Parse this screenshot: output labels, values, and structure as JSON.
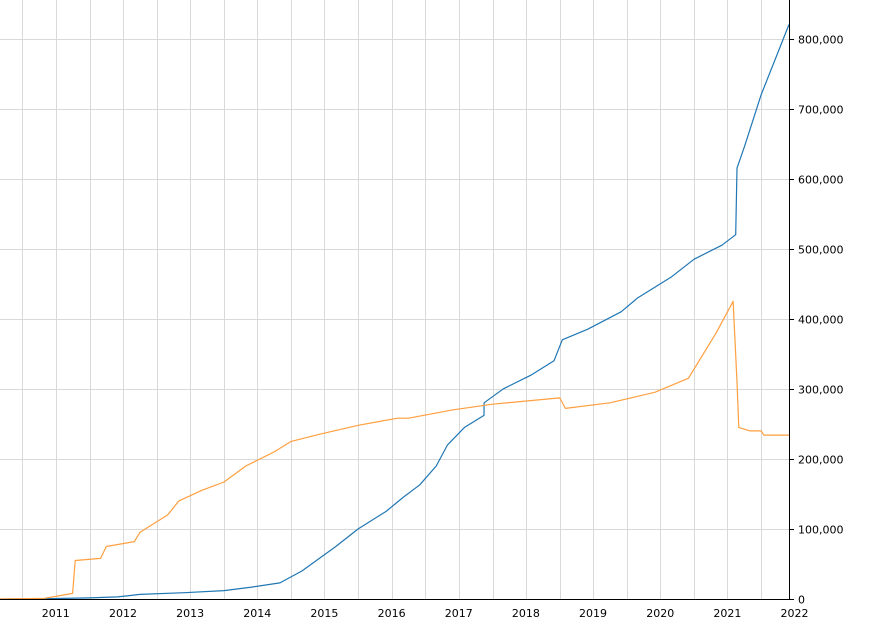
{
  "chart_data": {
    "type": "line",
    "title": "",
    "xlabel": "",
    "ylabel": "",
    "x_ticks": [
      "2011",
      "2012",
      "2013",
      "2014",
      "2015",
      "2016",
      "2017",
      "2018",
      "2019",
      "2020",
      "2021",
      "2022"
    ],
    "y_ticks": [
      {
        "value": 0,
        "label": "0"
      },
      {
        "value": 100000,
        "label": "100,000"
      },
      {
        "value": 200000,
        "label": "200,000"
      },
      {
        "value": 300000,
        "label": "300,000"
      },
      {
        "value": 400000,
        "label": "400,000"
      },
      {
        "value": 500000,
        "label": "500,000"
      },
      {
        "value": 600000,
        "label": "600,000"
      },
      {
        "value": 700000,
        "label": "700,000"
      },
      {
        "value": 800000,
        "label": "800,000"
      }
    ],
    "xlim": [
      "2010-09-01",
      "2022-06-01"
    ],
    "ylim": [
      0,
      855000
    ],
    "y_axis_position": "right",
    "grid": true,
    "legend": "none",
    "series": [
      {
        "color": "#1f77b4",
        "points": [
          [
            "2010-09-01",
            0
          ],
          [
            "2011-06-01",
            500
          ],
          [
            "2012-01-01",
            1500
          ],
          [
            "2012-06-01",
            3000
          ],
          [
            "2012-10-01",
            6500
          ],
          [
            "2013-06-01",
            9000
          ],
          [
            "2014-01-01",
            12000
          ],
          [
            "2014-06-01",
            17000
          ],
          [
            "2014-11-01",
            23000
          ],
          [
            "2015-03-01",
            40000
          ],
          [
            "2015-09-01",
            75000
          ],
          [
            "2016-01-01",
            100000
          ],
          [
            "2016-06-01",
            125000
          ],
          [
            "2016-09-01",
            145000
          ],
          [
            "2016-12-01",
            163000
          ],
          [
            "2017-03-01",
            190000
          ],
          [
            "2017-05-01",
            220000
          ],
          [
            "2017-08-01",
            245000
          ],
          [
            "2017-11-15",
            262000
          ],
          [
            "2017-11-16",
            280000
          ],
          [
            "2018-03-01",
            300000
          ],
          [
            "2018-08-01",
            320000
          ],
          [
            "2018-12-01",
            340000
          ],
          [
            "2019-01-15",
            370000
          ],
          [
            "2019-06-01",
            385000
          ],
          [
            "2019-12-01",
            410000
          ],
          [
            "2020-03-01",
            430000
          ],
          [
            "2020-09-01",
            460000
          ],
          [
            "2021-01-01",
            485000
          ],
          [
            "2021-06-01",
            505000
          ],
          [
            "2021-08-15",
            520000
          ],
          [
            "2021-08-22",
            615000
          ],
          [
            "2021-10-01",
            645000
          ],
          [
            "2022-01-01",
            720000
          ],
          [
            "2022-06-01",
            820000
          ]
        ]
      },
      {
        "color": "#ff9f3f",
        "points": [
          [
            "2010-09-01",
            0
          ],
          [
            "2011-05-01",
            1000
          ],
          [
            "2011-10-01",
            8000
          ],
          [
            "2011-10-15",
            55000
          ],
          [
            "2012-03-01",
            58000
          ],
          [
            "2012-04-01",
            75000
          ],
          [
            "2012-09-01",
            82000
          ],
          [
            "2012-10-01",
            95000
          ],
          [
            "2013-03-01",
            120000
          ],
          [
            "2013-05-01",
            140000
          ],
          [
            "2013-09-01",
            155000
          ],
          [
            "2014-01-01",
            167000
          ],
          [
            "2014-05-01",
            190000
          ],
          [
            "2014-10-01",
            210000
          ],
          [
            "2015-01-01",
            225000
          ],
          [
            "2015-06-01",
            235000
          ],
          [
            "2016-01-01",
            248000
          ],
          [
            "2016-08-01",
            258000
          ],
          [
            "2016-10-01",
            258000
          ],
          [
            "2017-06-01",
            270000
          ],
          [
            "2018-01-01",
            278000
          ],
          [
            "2019-01-01",
            287000
          ],
          [
            "2019-02-01",
            272000
          ],
          [
            "2019-10-01",
            280000
          ],
          [
            "2020-06-01",
            295000
          ],
          [
            "2020-12-01",
            315000
          ],
          [
            "2021-05-01",
            380000
          ],
          [
            "2021-08-01",
            425000
          ],
          [
            "2021-08-22",
            310000
          ],
          [
            "2021-09-01",
            245000
          ],
          [
            "2021-11-01",
            240000
          ],
          [
            "2022-01-01",
            240000
          ],
          [
            "2022-01-15",
            234000
          ],
          [
            "2022-06-01",
            234000
          ]
        ]
      }
    ]
  }
}
